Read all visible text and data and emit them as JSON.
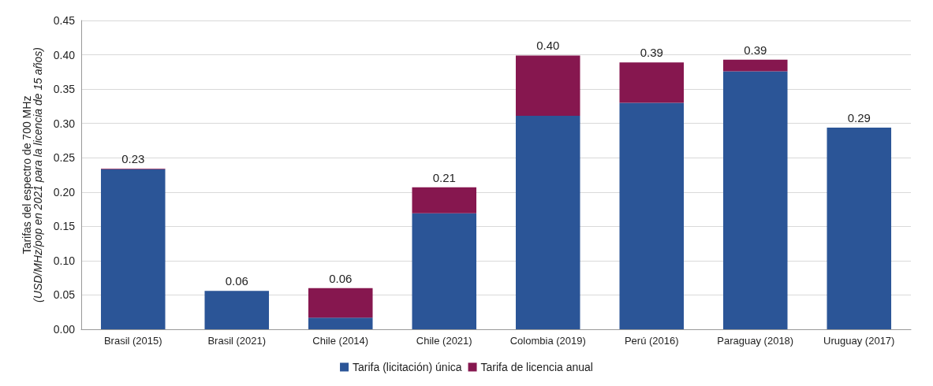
{
  "chart_data": {
    "type": "bar",
    "stacked": true,
    "ylabel": "Tarifas del espectro de 700 MHz\n(USD/MHz/pop en 2021 para la licencia de 15 años)",
    "categories": [
      "Brasil (2015)",
      "Brasil (2021)",
      "Chile (2014)",
      "Chile (2021)",
      "Colombia (2019)",
      "Perú (2016)",
      "Paraguay (2018)",
      "Uruguay (2017)"
    ],
    "series": [
      {
        "name": "Tarifa (licitación) única",
        "color": "#2b5597",
        "values": [
          0.233,
          0.056,
          0.017,
          0.169,
          0.311,
          0.33,
          0.376,
          0.294
        ]
      },
      {
        "name": "Tarifa de licencia anual",
        "color": "#86174f",
        "values": [
          0.001,
          0,
          0.043,
          0.038,
          0.088,
          0.059,
          0.017,
          0
        ]
      }
    ],
    "totals": [
      "0.23",
      "0.06",
      "0.06",
      "0.21",
      "0.40",
      "0.39",
      "0.39",
      "0.29"
    ],
    "ylim": [
      0,
      0.45
    ],
    "yticks": [
      {
        "value": 0,
        "label": "0.00"
      },
      0.05,
      {
        "value": 0.1,
        "label": "0.10"
      },
      0.15,
      {
        "value": 0.2,
        "label": "0.20"
      },
      0.25,
      {
        "value": 0.3,
        "label": "0.30"
      },
      0.35,
      {
        "value": 0.4,
        "label": "0.40"
      },
      0.45
    ],
    "grid": "y",
    "legend": "bottom"
  }
}
